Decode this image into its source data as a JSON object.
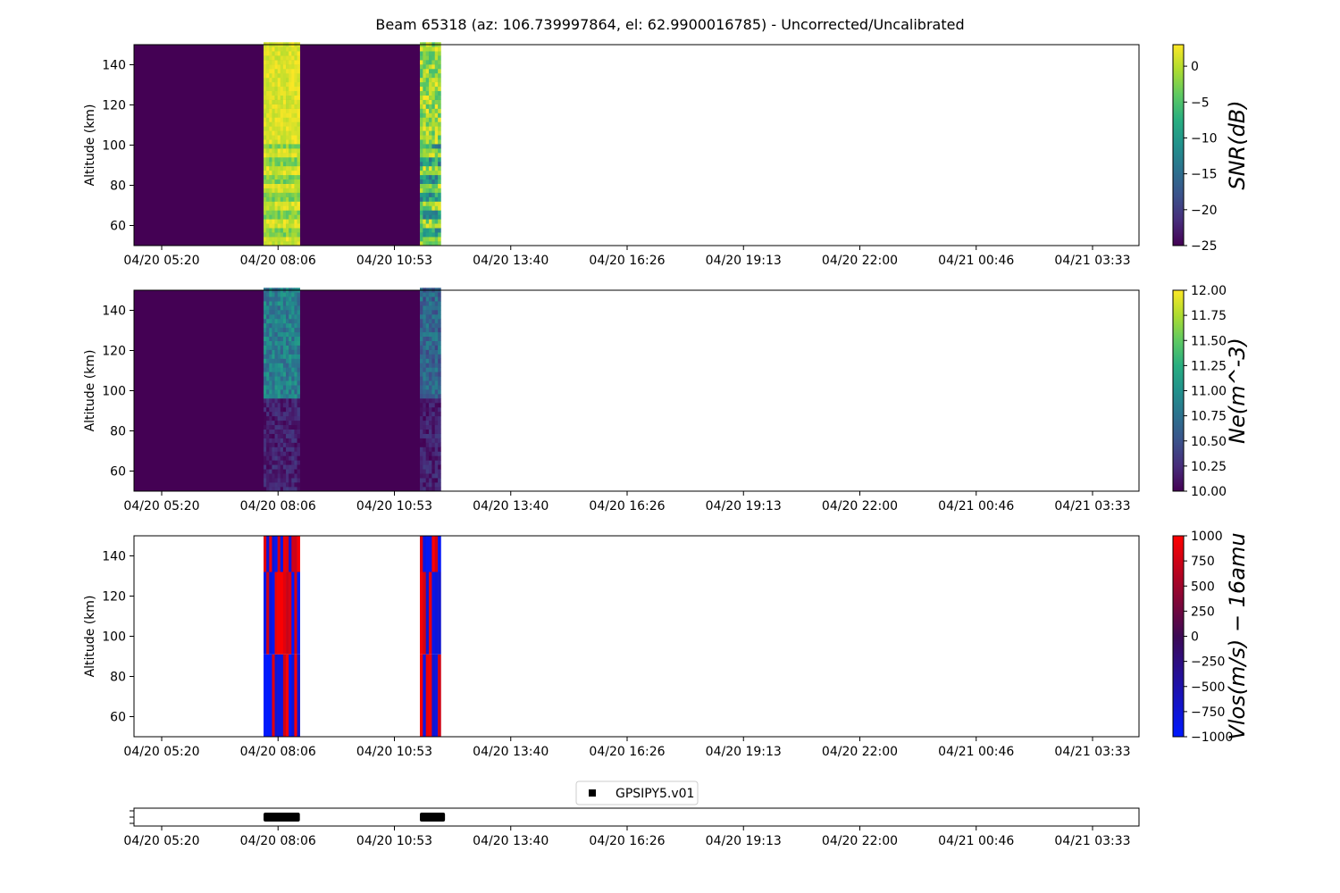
{
  "chart_data": {
    "title": "Beam 65318 (az: 106.739997864, el: 62.9900016785) - Uncorrected/Uncalibrated",
    "x_tick_labels": [
      "04/20 05:20",
      "04/20 08:06",
      "04/20 10:53",
      "04/20 13:40",
      "04/20 16:26",
      "04/20 19:13",
      "04/20 22:00",
      "04/21 00:46",
      "04/21 03:33"
    ],
    "panels": [
      {
        "type": "heatmap",
        "ylabel": "Altitude (km)",
        "ylim": [
          50,
          150
        ],
        "yticks": [
          60,
          80,
          100,
          120,
          140
        ],
        "colormap": "viridis",
        "colorbar": {
          "label": "SNR(dB)",
          "range": [
            -25,
            3
          ],
          "ticks": [
            "0",
            "−5",
            "−10",
            "−15",
            "−20",
            "−25"
          ],
          "tick_values": [
            0,
            -5,
            -10,
            -15,
            -20,
            -25
          ]
        },
        "background_value": -25,
        "data_segments": [
          {
            "start": "04/20 07:46",
            "end": "04/20 08:38",
            "value_range": [
              -5,
              3
            ]
          },
          {
            "start": "04/20 11:30",
            "end": "04/20 12:00",
            "value_range": [
              -15,
              3
            ]
          }
        ]
      },
      {
        "type": "heatmap",
        "ylabel": "Altitude (km)",
        "ylim": [
          50,
          150
        ],
        "yticks": [
          60,
          80,
          100,
          120,
          140
        ],
        "colormap": "viridis",
        "colorbar": {
          "label": "Ne(m^-3)",
          "range": [
            10,
            12
          ],
          "ticks": [
            "12.00",
            "11.75",
            "11.50",
            "11.25",
            "11.00",
            "10.75",
            "10.50",
            "10.25",
            "10.00"
          ],
          "tick_values": [
            12,
            11.75,
            11.5,
            11.25,
            11,
            10.75,
            10.5,
            10.25,
            10
          ]
        },
        "background_value": 10,
        "data_segments": [
          {
            "start": "04/20 07:46",
            "end": "04/20 08:38",
            "value_range": [
              10,
              11.1
            ]
          },
          {
            "start": "04/20 11:30",
            "end": "04/20 12:00",
            "value_range": [
              10,
              10.9
            ]
          }
        ]
      },
      {
        "type": "heatmap",
        "ylabel": "Altitude (km)",
        "ylim": [
          50,
          150
        ],
        "yticks": [
          60,
          80,
          100,
          120,
          140
        ],
        "colormap": "blue-red",
        "colorbar": {
          "label": "Vlos(m/s) − 16amu",
          "range": [
            -1000,
            1000
          ],
          "ticks": [
            "1000",
            "750",
            "500",
            "250",
            "0",
            "−250",
            "−500",
            "−750",
            "−1000"
          ],
          "tick_values": [
            1000,
            750,
            500,
            250,
            0,
            -250,
            -500,
            -750,
            -1000
          ]
        },
        "data_segments": [
          {
            "start": "04/20 07:46",
            "end": "04/20 08:38",
            "value_range": [
              -1000,
              1000
            ]
          },
          {
            "start": "04/20 11:30",
            "end": "04/20 12:00",
            "value_range": [
              -1000,
              1000
            ]
          }
        ]
      }
    ],
    "timeline": {
      "legend": "GPSIPY5.v01",
      "legend_placement": "top-center",
      "segments": [
        {
          "start": "04/20 07:46",
          "end": "04/20 08:38"
        },
        {
          "start": "04/20 11:30",
          "end": "04/20 12:06"
        }
      ]
    }
  },
  "colors": {
    "viridis_low": "#440154",
    "viridis_high": "#fde725",
    "vlos_neg": "#0019ff",
    "vlos_mid": "#3d0a55",
    "vlos_pos": "#ff0000"
  }
}
